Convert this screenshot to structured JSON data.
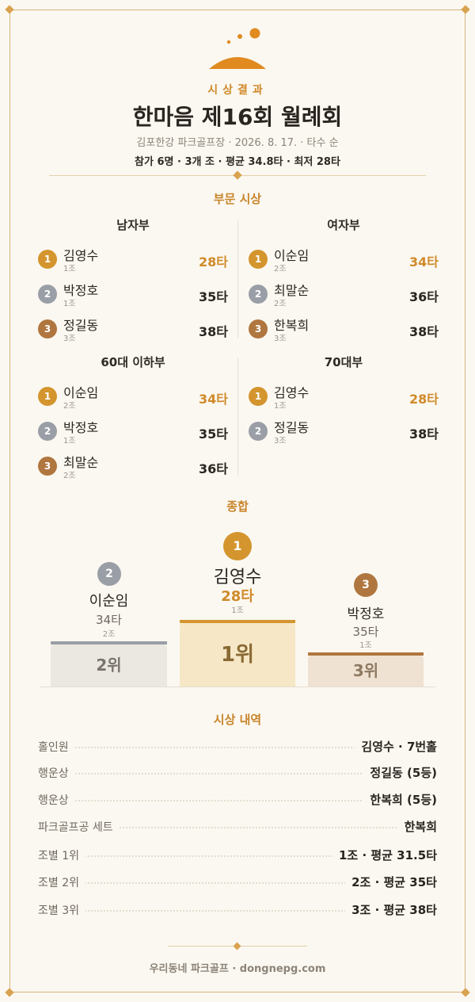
{
  "header": {
    "eyebrow": "시상결과",
    "title": "한마음 제16회 월례회",
    "meta": "김포한강 파크골프장 · 2026. 8. 17. · 타수 순",
    "summary": "참가 6명 · 3개 조 · 평균 34.8타 · 최저 28타"
  },
  "colors": {
    "accent": "#d08a2a",
    "gold": "#d4952e",
    "silver": "#9a9ea6",
    "bronze": "#b0763f",
    "background": "#fbf8f1"
  },
  "divisions_title": "부문 시상",
  "divisions": [
    {
      "name": "남자부",
      "entries": [
        {
          "rank": "1",
          "name": "김영수",
          "group": "1조",
          "score": "28타"
        },
        {
          "rank": "2",
          "name": "박정호",
          "group": "1조",
          "score": "35타"
        },
        {
          "rank": "3",
          "name": "정길동",
          "group": "3조",
          "score": "38타"
        }
      ]
    },
    {
      "name": "여자부",
      "entries": [
        {
          "rank": "1",
          "name": "이순임",
          "group": "2조",
          "score": "34타"
        },
        {
          "rank": "2",
          "name": "최말순",
          "group": "2조",
          "score": "36타"
        },
        {
          "rank": "3",
          "name": "한복희",
          "group": "3조",
          "score": "38타"
        }
      ]
    },
    {
      "name": "60대 이하부",
      "entries": [
        {
          "rank": "1",
          "name": "이순임",
          "group": "2조",
          "score": "34타"
        },
        {
          "rank": "2",
          "name": "박정호",
          "group": "1조",
          "score": "35타"
        },
        {
          "rank": "3",
          "name": "최말순",
          "group": "2조",
          "score": "36타"
        }
      ]
    },
    {
      "name": "70대부",
      "entries": [
        {
          "rank": "1",
          "name": "김영수",
          "group": "1조",
          "score": "28타"
        },
        {
          "rank": "2",
          "name": "정길동",
          "group": "3조",
          "score": "38타"
        }
      ]
    }
  ],
  "overall_title": "종합",
  "podium": {
    "first": {
      "rank": "1",
      "name": "김영수",
      "score": "28타",
      "group": "1조",
      "label": "1위"
    },
    "second": {
      "rank": "2",
      "name": "이순임",
      "score": "34타",
      "group": "2조",
      "label": "2위"
    },
    "third": {
      "rank": "3",
      "name": "박정호",
      "score": "35타",
      "group": "1조",
      "label": "3위"
    }
  },
  "awards_title": "시상 내역",
  "awards": [
    {
      "label": "홀인원",
      "value": "김영수 · 7번홀"
    },
    {
      "label": "행운상",
      "value": "정길동 (5등)"
    },
    {
      "label": "행운상",
      "value": "한복희 (5등)"
    },
    {
      "label": "파크골프공 세트",
      "value": "한복희"
    },
    {
      "label": "조별 1위",
      "value": "1조 · 평균 31.5타"
    },
    {
      "label": "조별 2위",
      "value": "2조 · 평균 35타"
    },
    {
      "label": "조별 3위",
      "value": "3조 · 평균 38타"
    }
  ],
  "footer": "우리동네 파크골프 · dongnepg.com"
}
